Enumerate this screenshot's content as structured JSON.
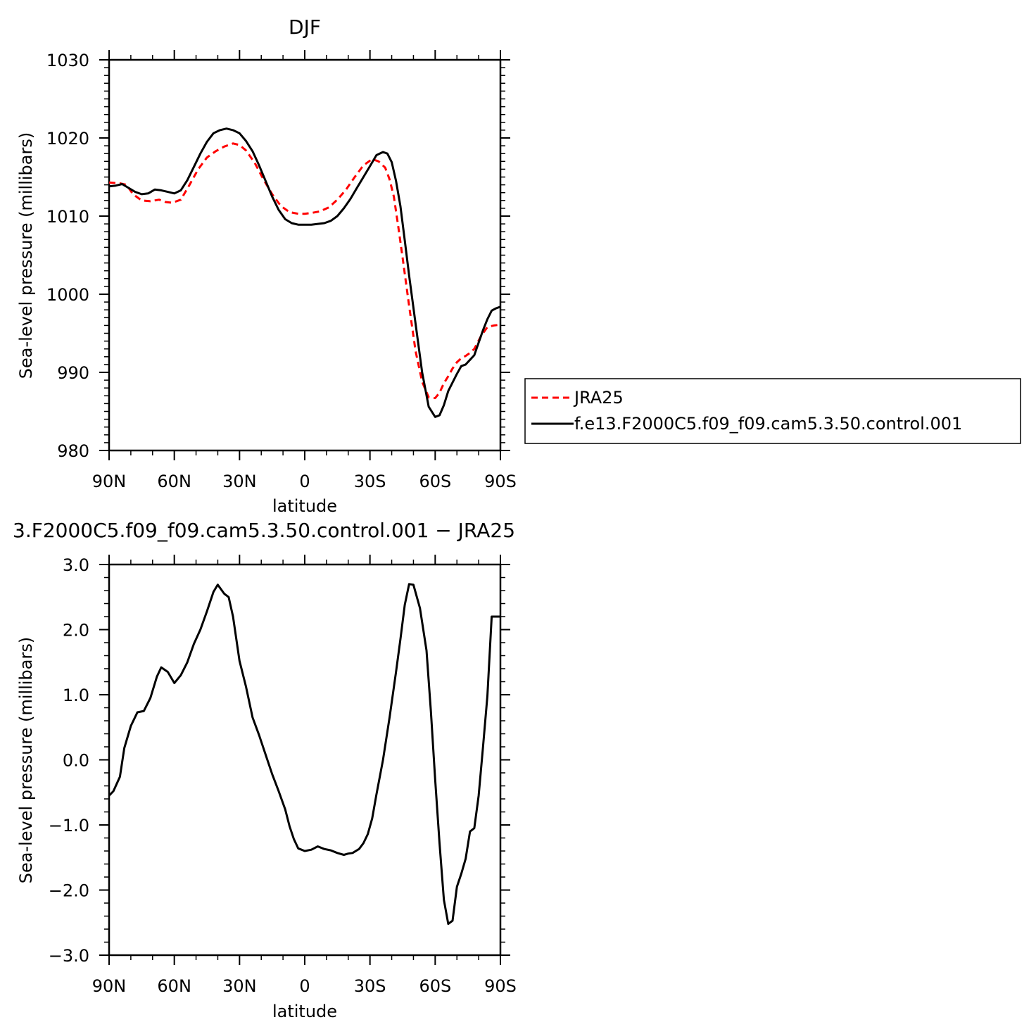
{
  "chart_data": [
    {
      "type": "line",
      "title": "DJF",
      "xlabel": "latitude",
      "ylabel": "Sea-level pressure (millibars)",
      "x_ticks": [
        "90N",
        "60N",
        "30N",
        "0",
        "30S",
        "60S",
        "90S"
      ],
      "x_range": [
        -90,
        90
      ],
      "ylim": [
        980,
        1030
      ],
      "y_ticks": [
        "980",
        "990",
        "1000",
        "1010",
        "1020",
        "1030"
      ],
      "grid": false,
      "legend_position": "right",
      "series": [
        {
          "name": "JRA25",
          "color": "#ff0000",
          "dash": "dashed",
          "x": [
            -90,
            -85,
            -82,
            -79,
            -75,
            -71,
            -67,
            -64,
            -61,
            -57,
            -53,
            -49,
            -45,
            -41,
            -37,
            -33,
            -30,
            -27,
            -23,
            -19,
            -15,
            -11,
            -7,
            -3,
            0,
            3,
            7,
            11,
            15,
            19,
            23,
            27,
            31,
            34,
            37,
            39,
            41,
            43,
            45,
            48,
            51,
            54,
            57,
            60,
            62,
            64,
            66,
            68,
            70,
            72,
            74,
            76,
            78,
            81,
            84,
            87,
            90
          ],
          "y": [
            1014.3,
            1014.2,
            1014.0,
            1012.8,
            1012.0,
            1011.9,
            1012.1,
            1011.8,
            1011.7,
            1012.1,
            1014.0,
            1016.0,
            1017.5,
            1018.3,
            1018.9,
            1019.3,
            1019.1,
            1018.4,
            1016.8,
            1014.7,
            1012.8,
            1011.3,
            1010.5,
            1010.3,
            1010.3,
            1010.4,
            1010.6,
            1011.1,
            1012.1,
            1013.4,
            1015.0,
            1016.5,
            1017.3,
            1017.0,
            1016.2,
            1014.7,
            1012.5,
            1008.7,
            1004.7,
            998.5,
            992.7,
            988.8,
            986.8,
            986.7,
            987.4,
            988.6,
            989.5,
            990.5,
            991.3,
            991.8,
            992.1,
            992.5,
            993.0,
            994.6,
            995.8,
            996.0,
            996.1
          ]
        },
        {
          "name": "f.e13.F2000C5.f09_f09.cam5.3.50.control.001",
          "color": "#000000",
          "dash": "solid",
          "x": [
            -90,
            -87,
            -84,
            -81,
            -78,
            -75,
            -72,
            -69,
            -66,
            -63,
            -60,
            -57,
            -54,
            -51,
            -48,
            -45,
            -42,
            -39,
            -36,
            -33,
            -30,
            -27,
            -24,
            -21,
            -18,
            -15,
            -12,
            -9,
            -6,
            -3,
            0,
            3,
            6,
            9,
            12,
            15,
            18,
            21,
            24,
            27,
            30,
            33,
            36,
            38,
            40,
            42,
            44,
            46,
            48,
            51,
            54,
            57,
            60,
            62,
            64,
            66,
            68,
            70,
            72,
            74,
            76,
            78,
            80,
            82,
            84,
            86,
            88,
            90
          ],
          "y": [
            1013.8,
            1013.9,
            1014.1,
            1013.6,
            1013.1,
            1012.8,
            1012.9,
            1013.4,
            1013.3,
            1013.1,
            1012.9,
            1013.3,
            1014.6,
            1016.3,
            1018.0,
            1019.5,
            1020.6,
            1021.0,
            1021.2,
            1021.0,
            1020.6,
            1019.6,
            1018.3,
            1016.5,
            1014.5,
            1012.5,
            1010.8,
            1009.6,
            1009.1,
            1008.9,
            1008.9,
            1008.9,
            1009.0,
            1009.1,
            1009.4,
            1010.0,
            1011.0,
            1012.2,
            1013.6,
            1015.0,
            1016.4,
            1017.8,
            1018.2,
            1018.0,
            1016.9,
            1014.5,
            1011.3,
            1006.9,
            1002.4,
            996.2,
            990.0,
            985.6,
            984.3,
            984.5,
            985.8,
            987.6,
            988.7,
            989.8,
            990.8,
            991.0,
            991.6,
            992.2,
            993.8,
            995.4,
            996.8,
            997.9,
            998.2,
            998.4
          ]
        }
      ]
    },
    {
      "type": "line",
      "title": "3.F2000C5.f09_f09.cam5.3.50.control.001 − JRA25",
      "xlabel": "latitude",
      "ylabel": "Sea-level pressure (millibars)",
      "x_ticks": [
        "90N",
        "60N",
        "30N",
        "0",
        "30S",
        "60S",
        "90S"
      ],
      "x_range": [
        -90,
        90
      ],
      "ylim": [
        -3.0,
        3.0
      ],
      "y_ticks": [
        "−3.0",
        "−2.0",
        "−1.0",
        "0.0",
        "1.0",
        "2.0",
        "3.0"
      ],
      "grid": false,
      "series": [
        {
          "color": "#000000",
          "dash": "solid",
          "x": [
            -90,
            -88,
            -85,
            -83,
            -80,
            -77,
            -74,
            -71,
            -68,
            -66,
            -63,
            -60,
            -57,
            -54,
            -51,
            -48,
            -45,
            -42,
            -40,
            -37,
            -35,
            -33,
            -30,
            -27,
            -24,
            -21,
            -18,
            -15,
            -12,
            -9,
            -7,
            -5,
            -3,
            0,
            3,
            6,
            9,
            12,
            15,
            18,
            20,
            22,
            25,
            27,
            29,
            31,
            33,
            36,
            39,
            42,
            44,
            46,
            48,
            50,
            53,
            56,
            58,
            60,
            62,
            64,
            66,
            68,
            70,
            72,
            74,
            76,
            78,
            80,
            82,
            84,
            86,
            88,
            90
          ],
          "y": [
            -0.55,
            -0.48,
            -0.26,
            0.18,
            0.52,
            0.73,
            0.75,
            0.95,
            1.28,
            1.42,
            1.35,
            1.18,
            1.3,
            1.5,
            1.78,
            2.0,
            2.28,
            2.58,
            2.69,
            2.55,
            2.5,
            2.2,
            1.52,
            1.12,
            0.65,
            0.38,
            0.08,
            -0.22,
            -0.48,
            -0.76,
            -1.02,
            -1.22,
            -1.36,
            -1.4,
            -1.38,
            -1.33,
            -1.37,
            -1.39,
            -1.43,
            -1.46,
            -1.44,
            -1.43,
            -1.37,
            -1.28,
            -1.14,
            -0.9,
            -0.53,
            0.0,
            0.65,
            1.35,
            1.85,
            2.38,
            2.7,
            2.69,
            2.33,
            1.68,
            0.75,
            -0.3,
            -1.28,
            -2.15,
            -2.52,
            -2.47,
            -1.95,
            -1.75,
            -1.52,
            -1.1,
            -1.05,
            -0.55,
            0.2,
            0.98,
            2.2,
            2.2,
            2.2
          ]
        }
      ]
    }
  ]
}
